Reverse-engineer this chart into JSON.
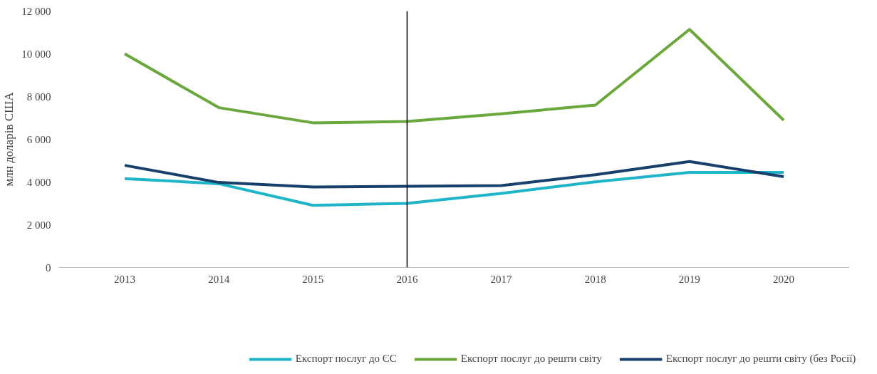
{
  "chart_data": {
    "type": "line",
    "ylabel": "млн доларів США",
    "categories": [
      "2013",
      "2014",
      "2015",
      "2016",
      "2017",
      "2018",
      "2019",
      "2020"
    ],
    "series": [
      {
        "name": "Експорт послуг до ЄС",
        "color": "#1fb5c9",
        "values": [
          4160,
          3920,
          2910,
          3000,
          3470,
          4010,
          4450,
          4450
        ]
      },
      {
        "name": "Експорт послуг до решти світу",
        "color": "#6aa83e",
        "values": [
          10000,
          7480,
          6770,
          6830,
          7190,
          7600,
          11140,
          6890
        ]
      },
      {
        "name": "Експорт послуг до решти світу (без Росії)",
        "color": "#17406b",
        "values": [
          4780,
          3980,
          3770,
          3800,
          3830,
          4340,
          4960,
          4250
        ]
      }
    ],
    "ylim": [
      0,
      12000
    ],
    "yticks": [
      {
        "value": 0,
        "label": "0"
      },
      {
        "value": 2000,
        "label": "2 000"
      },
      {
        "value": 4000,
        "label": "4 000"
      },
      {
        "value": 6000,
        "label": "6 000"
      },
      {
        "value": 8000,
        "label": "8 000"
      },
      {
        "value": 10000,
        "label": "10 000"
      },
      {
        "value": 12000,
        "label": "12 000"
      }
    ],
    "ref_lines": [
      {
        "axis": "x",
        "value": "2016",
        "color": "#000000"
      }
    ],
    "grid": false,
    "legend": "bottom"
  }
}
